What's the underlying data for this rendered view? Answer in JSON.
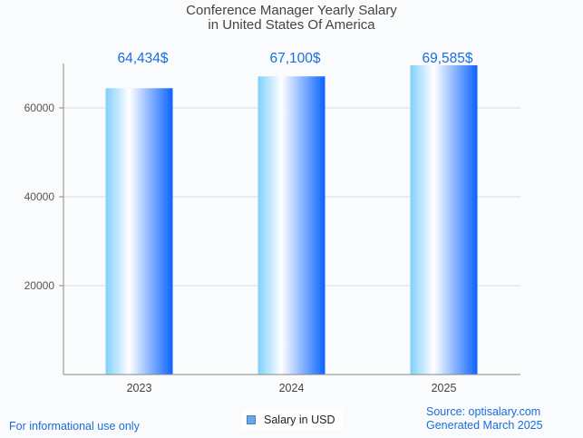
{
  "chart_data": {
    "type": "bar",
    "title": "Conference Manager Yearly Salary",
    "subtitle": "in United States Of America",
    "xlabel": "",
    "ylabel": "",
    "categories": [
      "2023",
      "2024",
      "2025"
    ],
    "series": [
      {
        "name": "Salary in USD",
        "values": [
          64434,
          67100,
          69585
        ],
        "data_labels": [
          "64,434$",
          "67,100$",
          "69,585$"
        ]
      }
    ],
    "ylim": [
      0,
      70000
    ],
    "yticks": [
      20000,
      40000,
      60000
    ],
    "ytick_labels": [
      "20000",
      "40000",
      "60000"
    ],
    "grid": true,
    "legend_position": "bottom-center",
    "colors": {
      "bar_left": "#7fd0fb",
      "bar_mid": "#ffffff",
      "bar_right": "#0a64ff",
      "data_label": "#1a6ddc",
      "grid": "#dddddd",
      "axis": "#888888"
    }
  },
  "footer": {
    "disclaimer": "For informational use only",
    "source": "Source: optisalary.com",
    "generated": "Generated March 2025"
  }
}
